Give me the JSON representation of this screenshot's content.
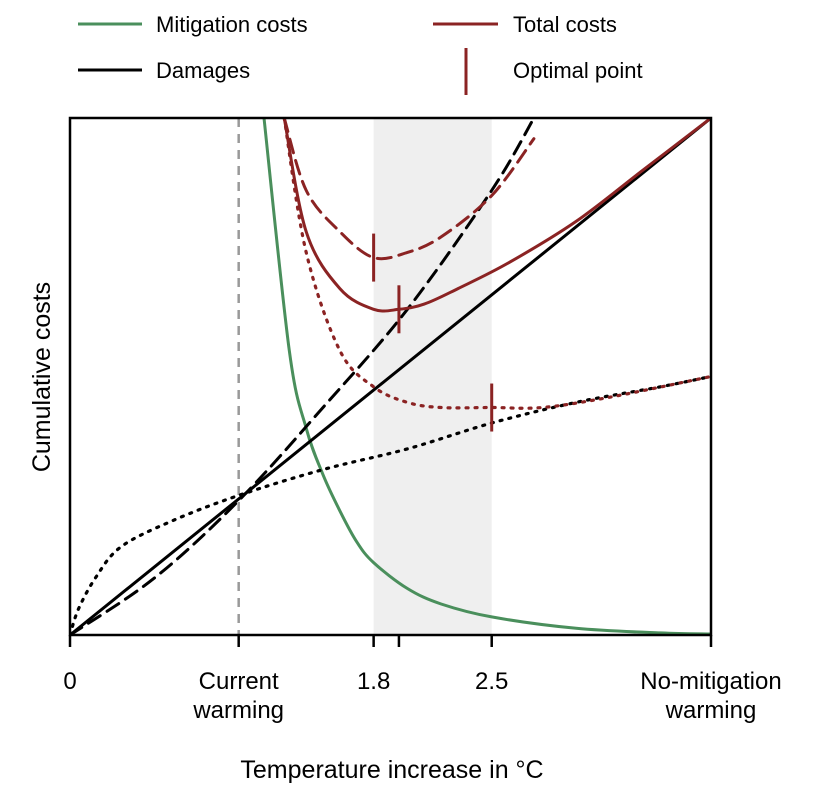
{
  "chart_data": {
    "type": "line",
    "title": "",
    "xlabel": "Temperature increase in °C",
    "ylabel": "Cumulative costs",
    "x_ticks": [
      {
        "value": 0,
        "lines": [
          "0"
        ]
      },
      {
        "value": 1.0,
        "lines": [
          "Current",
          "warming"
        ]
      },
      {
        "value": 1.8,
        "lines": [
          "1.8"
        ]
      },
      {
        "value": 1.95,
        "lines": [
          ""
        ]
      },
      {
        "value": 2.5,
        "lines": [
          "2.5"
        ]
      },
      {
        "value": 3.8,
        "lines": [
          "No-mitigation",
          "warming"
        ]
      }
    ],
    "xlim": [
      0,
      3.8
    ],
    "ylim": [
      0,
      1
    ],
    "current_warming": 1.0,
    "shaded_band": [
      1.8,
      2.5
    ],
    "legend": [
      {
        "label": "Mitigation costs",
        "key": "mitigation",
        "color": "#4a8f5c",
        "style": "line"
      },
      {
        "label": "Total costs",
        "key": "total",
        "color": "#8b2323",
        "style": "line"
      },
      {
        "label": "Damages",
        "key": "damages",
        "color": "#000000",
        "style": "line"
      },
      {
        "label": "Optimal point",
        "key": "optimal",
        "color": "#8b2323",
        "style": "tick"
      }
    ],
    "series": [
      {
        "name": "Mitigation costs",
        "color": "#4a8f5c",
        "dash": "solid",
        "x": [
          1.15,
          1.3,
          1.4,
          1.5,
          1.6,
          1.7,
          1.8,
          2.0,
          2.2,
          2.5,
          3.0,
          3.5,
          3.8
        ],
        "y": [
          1.0,
          0.55,
          0.4,
          0.31,
          0.24,
          0.18,
          0.14,
          0.09,
          0.06,
          0.035,
          0.013,
          0.004,
          0.002
        ]
      },
      {
        "name": "Damages (linear)",
        "color": "#000000",
        "dash": "solid",
        "x": [
          0,
          3.8
        ],
        "y": [
          0,
          1.0
        ]
      },
      {
        "name": "Damages (convex)",
        "color": "#000000",
        "dash": "dashed",
        "x": [
          0,
          0.5,
          1.0,
          1.5,
          2.0,
          2.5,
          2.75
        ],
        "y": [
          0,
          0.11,
          0.26,
          0.44,
          0.63,
          0.86,
          1.0
        ]
      },
      {
        "name": "Damages (concave)",
        "color": "#000000",
        "dash": "dotted",
        "x": [
          0,
          0.05,
          0.15,
          0.3,
          0.6,
          1.0,
          1.5,
          2.0,
          2.5,
          3.0,
          3.5,
          3.8
        ],
        "y": [
          0,
          0.05,
          0.11,
          0.17,
          0.22,
          0.27,
          0.32,
          0.36,
          0.41,
          0.45,
          0.48,
          0.5
        ]
      },
      {
        "name": "Total costs (linear damages)",
        "color": "#8b2323",
        "dash": "solid",
        "x": [
          1.27,
          1.4,
          1.6,
          1.8,
          1.95,
          2.1,
          2.3,
          2.6,
          3.0,
          3.4,
          3.8
        ],
        "y": [
          1.0,
          0.78,
          0.67,
          0.63,
          0.63,
          0.64,
          0.67,
          0.72,
          0.8,
          0.9,
          1.0
        ]
      },
      {
        "name": "Total costs (convex damages)",
        "color": "#8b2323",
        "dash": "dashed",
        "x": [
          1.27,
          1.4,
          1.6,
          1.8,
          2.0,
          2.2,
          2.5,
          2.75
        ],
        "y": [
          1.0,
          0.86,
          0.78,
          0.73,
          0.74,
          0.77,
          0.85,
          0.96
        ]
      },
      {
        "name": "Total costs (concave damages)",
        "color": "#8b2323",
        "dash": "dotted",
        "x": [
          1.27,
          1.4,
          1.6,
          1.8,
          2.0,
          2.2,
          2.5,
          2.8,
          3.2,
          3.8
        ],
        "y": [
          1.0,
          0.74,
          0.55,
          0.48,
          0.45,
          0.44,
          0.44,
          0.44,
          0.46,
          0.5
        ]
      }
    ],
    "optimal_points": [
      {
        "series": "Total costs (convex damages)",
        "x": 1.8,
        "y": 0.73
      },
      {
        "series": "Total costs (linear damages)",
        "x": 1.95,
        "y": 0.63
      },
      {
        "series": "Total costs (concave damages)",
        "x": 2.5,
        "y": 0.44
      }
    ]
  }
}
